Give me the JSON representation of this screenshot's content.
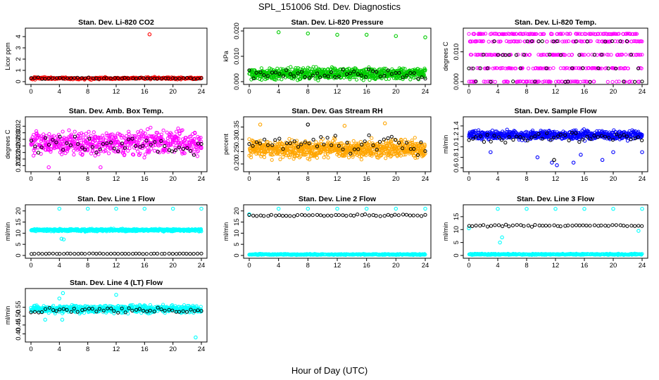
{
  "figure": {
    "title": "SPL_151006  Std. Dev. Diagnostics",
    "xlabel": "Hour of Day (UTC)"
  },
  "chart_data": [
    {
      "type": "scatter",
      "title": "Stan. Dev. Li-820 CO2",
      "xlabel": "",
      "ylabel": "Licor ppm",
      "xlim": [
        0,
        24
      ],
      "ylim": [
        0,
        4.5
      ],
      "xticks": [
        "0",
        "4",
        "8",
        "12",
        "16",
        "20",
        "24"
      ],
      "yticks": [
        "0",
        "1",
        "2",
        "3",
        "4"
      ],
      "grid": false,
      "series": [
        {
          "color": "#ff0000",
          "dense": {
            "n": 300,
            "ymin": 0.15,
            "ymax": 0.45
          },
          "outliers": [
            [
              16.7,
              4.2
            ]
          ]
        },
        {
          "color": "#000000",
          "dense": {
            "n": 48,
            "ymin": 0.2,
            "ymax": 0.4
          },
          "outliers": []
        }
      ]
    },
    {
      "type": "scatter",
      "title": "Stan. Dev. Li-820 Pressure",
      "xlabel": "",
      "ylabel": "kPa",
      "xlim": [
        0,
        24
      ],
      "ylim": [
        0,
        0.02
      ],
      "xticks": [
        "0",
        "4",
        "8",
        "12",
        "16",
        "20",
        "24"
      ],
      "yticks": [
        "0.000",
        "0.010",
        "0.020"
      ],
      "grid": false,
      "series": [
        {
          "color": "#00cc00",
          "dense": {
            "n": 700,
            "ymin": 0,
            "ymax": 0.0065
          },
          "outliers": [
            [
              4,
              0.0195
            ],
            [
              8,
              0.019
            ],
            [
              12,
              0.0185
            ],
            [
              16,
              0.0185
            ],
            [
              20,
              0.018
            ],
            [
              24,
              0.0175
            ]
          ]
        },
        {
          "color": "#000000",
          "dense": {
            "n": 48,
            "ymin": 0,
            "ymax": 0.006
          },
          "outliers": []
        }
      ]
    },
    {
      "type": "scatter",
      "title": "Stan. Dev. Li-820 Temp.",
      "xlabel": "",
      "ylabel": "degrees C",
      "xlim": [
        0,
        24
      ],
      "ylim": [
        0,
        0.017
      ],
      "xticks": [
        "0",
        "4",
        "8",
        "12",
        "16",
        "20",
        "24"
      ],
      "yticks": [
        "0.000",
        "0.010"
      ],
      "grid": false,
      "series": [
        {
          "color": "#ff00ff",
          "levels": [
            0,
            0.0045,
            0.009,
            0.0135,
            0.016
          ],
          "dense": {
            "n": 500,
            "ymin": 0,
            "ymax": 0.016
          },
          "outliers": []
        },
        {
          "color": "#000000",
          "levels": [
            0,
            0.0045,
            0.009,
            0.0135
          ],
          "dense": {
            "n": 48,
            "ymin": 0,
            "ymax": 0.0135
          },
          "outliers": []
        }
      ]
    },
    {
      "type": "scatter",
      "title": "Stan. Dev. Amb. Box Temp.",
      "xlabel": "",
      "ylabel": "degrees C",
      "xlim": [
        0,
        24
      ],
      "ylim": [
        0.19,
        0.34
      ],
      "xticks": [
        "0",
        "4",
        "8",
        "12",
        "16",
        "20",
        "24"
      ],
      "yticks": [
        "0.20",
        "0.22",
        "0.24",
        "0.26",
        "0.28",
        "0.30",
        "0.32"
      ],
      "grid": false,
      "series": [
        {
          "color": "#ff00ff",
          "dense": {
            "n": 600,
            "ymin": 0.22,
            "ymax": 0.32
          },
          "outliers": [
            [
              2.5,
              0.195
            ],
            [
              9.8,
              0.195
            ]
          ]
        },
        {
          "color": "#000000",
          "dense": {
            "n": 48,
            "ymin": 0.22,
            "ymax": 0.3
          },
          "outliers": []
        }
      ]
    },
    {
      "type": "scatter",
      "title": "Stan. Dev. Gas Stream RH",
      "xlabel": "",
      "ylabel": "percent",
      "xlim": [
        0,
        24
      ],
      "ylim": [
        0.18,
        0.38
      ],
      "xticks": [
        "0",
        "4",
        "8",
        "12",
        "16",
        "20",
        "24"
      ],
      "yticks": [
        "0.20",
        "0.25",
        "0.30",
        "0.35"
      ],
      "grid": false,
      "series": [
        {
          "color": "#ffa500",
          "dense": {
            "n": 800,
            "ymin": 0.21,
            "ymax": 0.31
          },
          "outliers": [
            [
              1.5,
              0.36
            ],
            [
              13,
              0.355
            ],
            [
              18.5,
              0.365
            ]
          ]
        },
        {
          "color": "#000000",
          "dense": {
            "n": 48,
            "ymin": 0.22,
            "ymax": 0.34
          },
          "outliers": [
            [
              8,
              0.36
            ]
          ]
        }
      ]
    },
    {
      "type": "scatter",
      "title": "Stan. Dev. Sample Flow",
      "xlabel": "",
      "ylabel": "ml/min",
      "xlim": [
        0,
        24
      ],
      "ylim": [
        0.58,
        1.52
      ],
      "xticks": [
        "0",
        "4",
        "8",
        "12",
        "16",
        "20",
        "24"
      ],
      "yticks": [
        "0.6",
        "0.8",
        "1.0",
        "1.2",
        "1.4"
      ],
      "grid": false,
      "series": [
        {
          "color": "#0000ff",
          "dense": {
            "n": 600,
            "ymin": 1.1,
            "ymax": 1.35
          },
          "outliers": [
            [
              3,
              0.9
            ],
            [
              9.5,
              0.8
            ],
            [
              11.5,
              0.7
            ],
            [
              12.2,
              0.65
            ],
            [
              14.5,
              0.7
            ],
            [
              15.5,
              0.85
            ],
            [
              18.5,
              0.75
            ],
            [
              20,
              0.9
            ],
            [
              24,
              0.9
            ]
          ]
        },
        {
          "color": "#000000",
          "dense": {
            "n": 48,
            "ymin": 1.05,
            "ymax": 1.3
          },
          "outliers": [
            [
              11.8,
              0.75
            ]
          ]
        }
      ]
    },
    {
      "type": "scatter",
      "title": "Stan. Dev. Line 1 Flow",
      "xlabel": "",
      "ylabel": "ml/min",
      "xlim": [
        0,
        24
      ],
      "ylim": [
        0,
        21.5
      ],
      "xticks": [
        "0",
        "4",
        "8",
        "12",
        "16",
        "20",
        "24"
      ],
      "yticks": [
        "0",
        "5",
        "10",
        "15",
        "20"
      ],
      "grid": false,
      "series": [
        {
          "color": "#00ffff",
          "dense": {
            "n": 600,
            "ymin": 10.6,
            "ymax": 12.2
          },
          "outliers": [
            [
              4,
              21
            ],
            [
              8,
              21
            ],
            [
              12,
              21
            ],
            [
              16,
              21
            ],
            [
              20,
              21
            ],
            [
              24,
              21
            ],
            [
              4.3,
              7.5
            ],
            [
              4.6,
              7.2
            ]
          ]
        },
        {
          "color": "#000000",
          "dense": {
            "n": 48,
            "ymin": 0.6,
            "ymax": 1.0
          },
          "outliers": []
        }
      ]
    },
    {
      "type": "scatter",
      "title": "Stan. Dev. Line 2 Flow",
      "xlabel": "",
      "ylabel": "ml/min",
      "xlim": [
        0,
        24
      ],
      "ylim": [
        0,
        21.5
      ],
      "xticks": [
        "0",
        "4",
        "8",
        "12",
        "16",
        "20",
        "24"
      ],
      "yticks": [
        "0",
        "5",
        "10",
        "15",
        "20"
      ],
      "grid": false,
      "series": [
        {
          "color": "#00ffff",
          "dense": {
            "n": 400,
            "ymin": 0.1,
            "ymax": 0.8
          },
          "outliers": [
            [
              0,
              18.5
            ],
            [
              4,
              21
            ],
            [
              8,
              21
            ],
            [
              12,
              21
            ],
            [
              16,
              21
            ],
            [
              20,
              21
            ],
            [
              24,
              21
            ]
          ]
        },
        {
          "color": "#000000",
          "dense": {
            "n": 48,
            "ymin": 17.5,
            "ymax": 18.6
          },
          "outliers": []
        }
      ]
    },
    {
      "type": "scatter",
      "title": "Stan. Dev. Line 3 Flow",
      "xlabel": "",
      "ylabel": "ml/min",
      "xlim": [
        0,
        24
      ],
      "ylim": [
        0,
        18.5
      ],
      "xticks": [
        "0",
        "4",
        "8",
        "12",
        "16",
        "20",
        "24"
      ],
      "yticks": [
        "0",
        "5",
        "10",
        "15"
      ],
      "grid": false,
      "series": [
        {
          "color": "#00ffff",
          "dense": {
            "n": 400,
            "ymin": 0.1,
            "ymax": 0.8
          },
          "outliers": [
            [
              0,
              10.5
            ],
            [
              4,
              18
            ],
            [
              8,
              18
            ],
            [
              12,
              18
            ],
            [
              16,
              18
            ],
            [
              20,
              18
            ],
            [
              24,
              18
            ],
            [
              4.3,
              5
            ],
            [
              4.6,
              7
            ],
            [
              23.5,
              9.5
            ]
          ]
        },
        {
          "color": "#000000",
          "dense": {
            "n": 48,
            "ymin": 11.0,
            "ymax": 12.0
          },
          "outliers": []
        }
      ]
    },
    {
      "type": "scatter",
      "title": "Stan. Dev. Line 4 (LT) Flow",
      "xlabel": "",
      "ylabel": "ml/min",
      "xlim": [
        0,
        24
      ],
      "ylim": [
        0.37,
        0.64
      ],
      "xticks": [
        "0",
        "4",
        "8",
        "12",
        "16",
        "20",
        "24"
      ],
      "yticks": [
        "0.40",
        "0.45",
        "0.50",
        "0.55"
      ],
      "grid": false,
      "series": [
        {
          "color": "#00ffff",
          "dense": {
            "n": 600,
            "ymin": 0.51,
            "ymax": 0.57
          },
          "outliers": [
            [
              4,
              0.6
            ],
            [
              4.5,
              0.63
            ],
            [
              12,
              0.62
            ],
            [
              23.2,
              0.38
            ],
            [
              4.4,
              0.48
            ],
            [
              2,
              0.48
            ]
          ]
        },
        {
          "color": "#000000",
          "dense": {
            "n": 48,
            "ymin": 0.51,
            "ymax": 0.56
          },
          "outliers": []
        }
      ]
    }
  ]
}
